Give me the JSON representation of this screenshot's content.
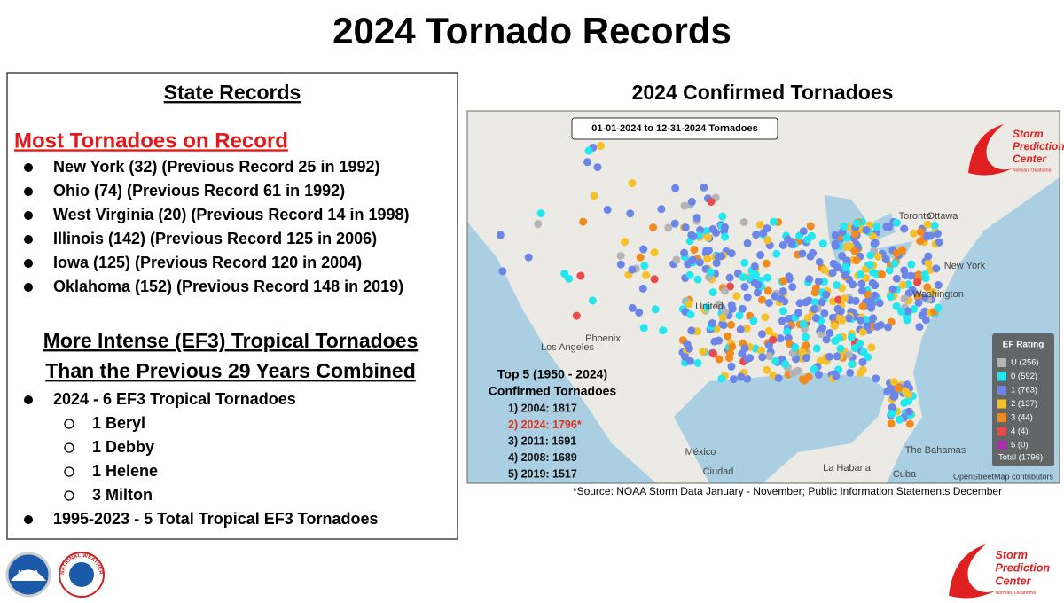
{
  "title": "2024 Tornado Records",
  "state_records": {
    "heading": "State Records",
    "subheading": "Most Tornadoes on Record",
    "items": [
      "New York (32) (Previous Record 25 in 1992)",
      "Ohio (74) (Previous Record 61 in 1992)",
      "West Virginia (20) (Previous Record 14 in 1998)",
      "Illinois (142) (Previous Record 125 in 2006)",
      "Iowa (125) (Previous Record 120 in 2004)",
      "Oklahoma (152) (Previous Record 148 in 2019)"
    ]
  },
  "tropical": {
    "heading_lines": [
      "More Intense (EF3) Tropical Tornadoes",
      "Than the Previous 29 Years Combined"
    ],
    "items": [
      {
        "text": "2024 - 6 EF3 Tropical Tornadoes",
        "subitems": [
          "1 Beryl",
          "1 Debby",
          "1 Helene",
          "3 Milton"
        ]
      },
      {
        "text": "1995-2023 - 5 Total Tropical EF3 Tornadoes"
      }
    ]
  },
  "map": {
    "title": "2024 Confirmed Tornadoes",
    "date_range": "01-01-2024 to 12-31-2024 Tornadoes",
    "place_labels": [
      "Ottawa",
      "Toronto",
      "New York",
      "Washington",
      "United",
      "Los Angeles",
      "Phoenix",
      "México",
      "Ciudad",
      "La Habana",
      "Cuba",
      "The Bahamas"
    ],
    "legend": {
      "title": "EF Rating",
      "total": "Total (1796)",
      "entries": [
        {
          "label": "U (256)",
          "color": "#b4b4b4"
        },
        {
          "label": "0 (592)",
          "color": "#22e6f0"
        },
        {
          "label": "1 (763)",
          "color": "#6b86e8"
        },
        {
          "label": "2 (137)",
          "color": "#f5c02a"
        },
        {
          "label": "3 (44)",
          "color": "#f28a1e"
        },
        {
          "label": "4 (4)",
          "color": "#ea4a4a"
        },
        {
          "label": "5 (0)",
          "color": "#b02ab0"
        }
      ]
    },
    "top5": {
      "title_lines": [
        "Top 5 (1950 - 2024)",
        "Confirmed Tornadoes"
      ],
      "entries": [
        "1) 2004: 1817",
        "2) 2024: 1796*",
        "3) 2011: 1691",
        "4) 2008: 1689",
        "5) 2019: 1517"
      ],
      "highlight_index": 1,
      "highlight_color": "#e0301e"
    },
    "attribution": "OpenStreetMap contributors"
  },
  "source": "*Source: NOAA Storm Data January - November; Public Information Statements December",
  "spc_logo": {
    "lines": [
      "Storm",
      "Prediction",
      "Center"
    ],
    "sub": "Norman, Oklahoma"
  },
  "noaa_logo": "NOAA",
  "nws_logo": "NATIONAL WEATHER SERVICE"
}
